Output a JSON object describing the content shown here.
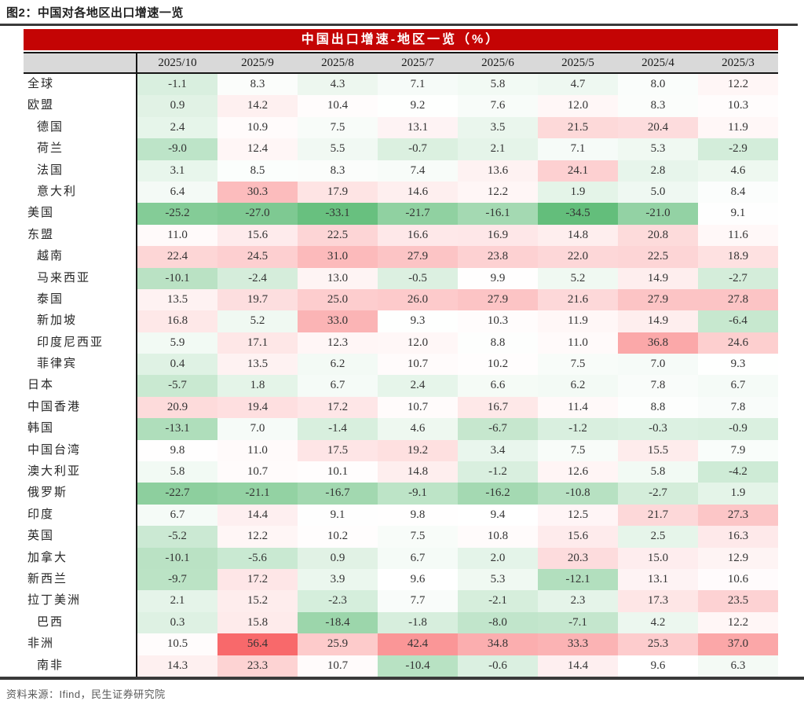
{
  "page": {
    "figure_title": "图2：中国对各地区出口增速一览",
    "source": "资料来源：Ifind，民生证券研究院"
  },
  "colors": {
    "banner_red": "#C40404",
    "header_gray": "#D9D9D9",
    "rule_dark": "#3A3A3A",
    "source_gray": "#595959",
    "scale_green": "#63BE7B",
    "scale_red": "#F8696B"
  },
  "chart_data": {
    "type": "heatmap",
    "title": "中国出口增速-地区一览（%）",
    "columns": [
      "2025/10",
      "2025/9",
      "2025/8",
      "2025/7",
      "2025/6",
      "2025/5",
      "2025/4",
      "2025/3"
    ],
    "scale": {
      "min": -34.5,
      "mid": 9.5,
      "max": 56.4,
      "green": "#63BE7B",
      "red": "#F8696B"
    },
    "rows": [
      {
        "label": "全球",
        "indent": 0,
        "values": [
          -1.1,
          8.3,
          4.3,
          7.1,
          5.8,
          4.7,
          8.0,
          12.2
        ]
      },
      {
        "label": "欧盟",
        "indent": 0,
        "values": [
          0.9,
          14.2,
          10.4,
          9.2,
          7.6,
          12.0,
          8.3,
          10.3
        ]
      },
      {
        "label": "德国",
        "indent": 1,
        "values": [
          2.4,
          10.9,
          7.5,
          13.1,
          3.5,
          21.5,
          20.4,
          11.9
        ]
      },
      {
        "label": "荷兰",
        "indent": 1,
        "values": [
          -9.0,
          12.4,
          5.5,
          -0.7,
          2.1,
          7.1,
          5.3,
          -2.9
        ]
      },
      {
        "label": "法国",
        "indent": 1,
        "values": [
          3.1,
          8.5,
          8.3,
          7.4,
          13.6,
          24.1,
          2.8,
          4.6
        ]
      },
      {
        "label": "意大利",
        "indent": 1,
        "values": [
          6.4,
          30.3,
          17.9,
          14.6,
          12.2,
          1.9,
          5.0,
          8.4
        ]
      },
      {
        "label": "美国",
        "indent": 0,
        "values": [
          -25.2,
          -27.0,
          -33.1,
          -21.7,
          -16.1,
          -34.5,
          -21.0,
          9.1
        ]
      },
      {
        "label": "东盟",
        "indent": 0,
        "values": [
          11.0,
          15.6,
          22.5,
          16.6,
          16.9,
          14.8,
          20.8,
          11.6
        ]
      },
      {
        "label": "越南",
        "indent": 1,
        "values": [
          22.4,
          24.5,
          31.0,
          27.9,
          23.8,
          22.0,
          22.5,
          18.9
        ]
      },
      {
        "label": "马来西亚",
        "indent": 1,
        "values": [
          -10.1,
          -2.4,
          13.0,
          -0.5,
          9.9,
          5.2,
          14.9,
          -2.7
        ]
      },
      {
        "label": "泰国",
        "indent": 1,
        "values": [
          13.5,
          19.7,
          25.0,
          26.0,
          27.9,
          21.6,
          27.9,
          27.8
        ]
      },
      {
        "label": "新加坡",
        "indent": 1,
        "values": [
          16.8,
          5.2,
          33.0,
          9.3,
          10.3,
          11.9,
          14.9,
          -6.4
        ]
      },
      {
        "label": "印度尼西亚",
        "indent": 1,
        "values": [
          5.9,
          17.1,
          12.3,
          12.0,
          8.8,
          11.0,
          36.8,
          24.6
        ]
      },
      {
        "label": "菲律宾",
        "indent": 1,
        "values": [
          0.4,
          13.5,
          6.2,
          10.7,
          10.2,
          7.5,
          7.0,
          9.3
        ]
      },
      {
        "label": "日本",
        "indent": 0,
        "values": [
          -5.7,
          1.8,
          6.7,
          2.4,
          6.6,
          6.2,
          7.8,
          6.7
        ]
      },
      {
        "label": "中国香港",
        "indent": 0,
        "values": [
          20.9,
          19.4,
          17.2,
          10.7,
          16.7,
          11.4,
          8.8,
          7.8
        ]
      },
      {
        "label": "韩国",
        "indent": 0,
        "values": [
          -13.1,
          7.0,
          -1.4,
          4.6,
          -6.7,
          -1.2,
          -0.3,
          -0.9
        ]
      },
      {
        "label": "中国台湾",
        "indent": 0,
        "values": [
          9.8,
          11.0,
          17.5,
          19.2,
          3.4,
          7.5,
          15.5,
          7.9
        ]
      },
      {
        "label": "澳大利亚",
        "indent": 0,
        "values": [
          5.8,
          10.7,
          10.1,
          14.8,
          -1.2,
          12.6,
          5.8,
          -4.2
        ]
      },
      {
        "label": "俄罗斯",
        "indent": 0,
        "values": [
          -22.7,
          -21.1,
          -16.7,
          -9.1,
          -16.2,
          -10.8,
          -2.7,
          1.9
        ]
      },
      {
        "label": "印度",
        "indent": 0,
        "values": [
          6.7,
          14.4,
          9.1,
          9.8,
          9.4,
          12.5,
          21.7,
          27.3
        ]
      },
      {
        "label": "英国",
        "indent": 0,
        "values": [
          -5.2,
          12.2,
          10.2,
          7.5,
          10.8,
          15.6,
          2.5,
          16.3
        ]
      },
      {
        "label": "加拿大",
        "indent": 0,
        "values": [
          -10.1,
          -5.6,
          0.9,
          6.7,
          2.0,
          20.3,
          15.0,
          12.9
        ]
      },
      {
        "label": "新西兰",
        "indent": 0,
        "values": [
          -9.7,
          17.2,
          3.9,
          9.6,
          5.3,
          -12.1,
          13.1,
          10.6
        ]
      },
      {
        "label": "拉丁美洲",
        "indent": 0,
        "values": [
          2.1,
          15.2,
          -2.3,
          7.7,
          -2.1,
          2.3,
          17.3,
          23.5
        ]
      },
      {
        "label": "巴西",
        "indent": 1,
        "values": [
          0.3,
          15.8,
          -18.4,
          -1.8,
          -8.0,
          -7.1,
          4.2,
          12.2
        ]
      },
      {
        "label": "非洲",
        "indent": 0,
        "values": [
          10.5,
          56.4,
          25.9,
          42.4,
          34.8,
          33.3,
          25.3,
          37.0
        ]
      },
      {
        "label": "南非",
        "indent": 1,
        "values": [
          14.3,
          23.3,
          10.7,
          -10.4,
          -0.6,
          14.4,
          9.6,
          6.3
        ]
      }
    ]
  }
}
